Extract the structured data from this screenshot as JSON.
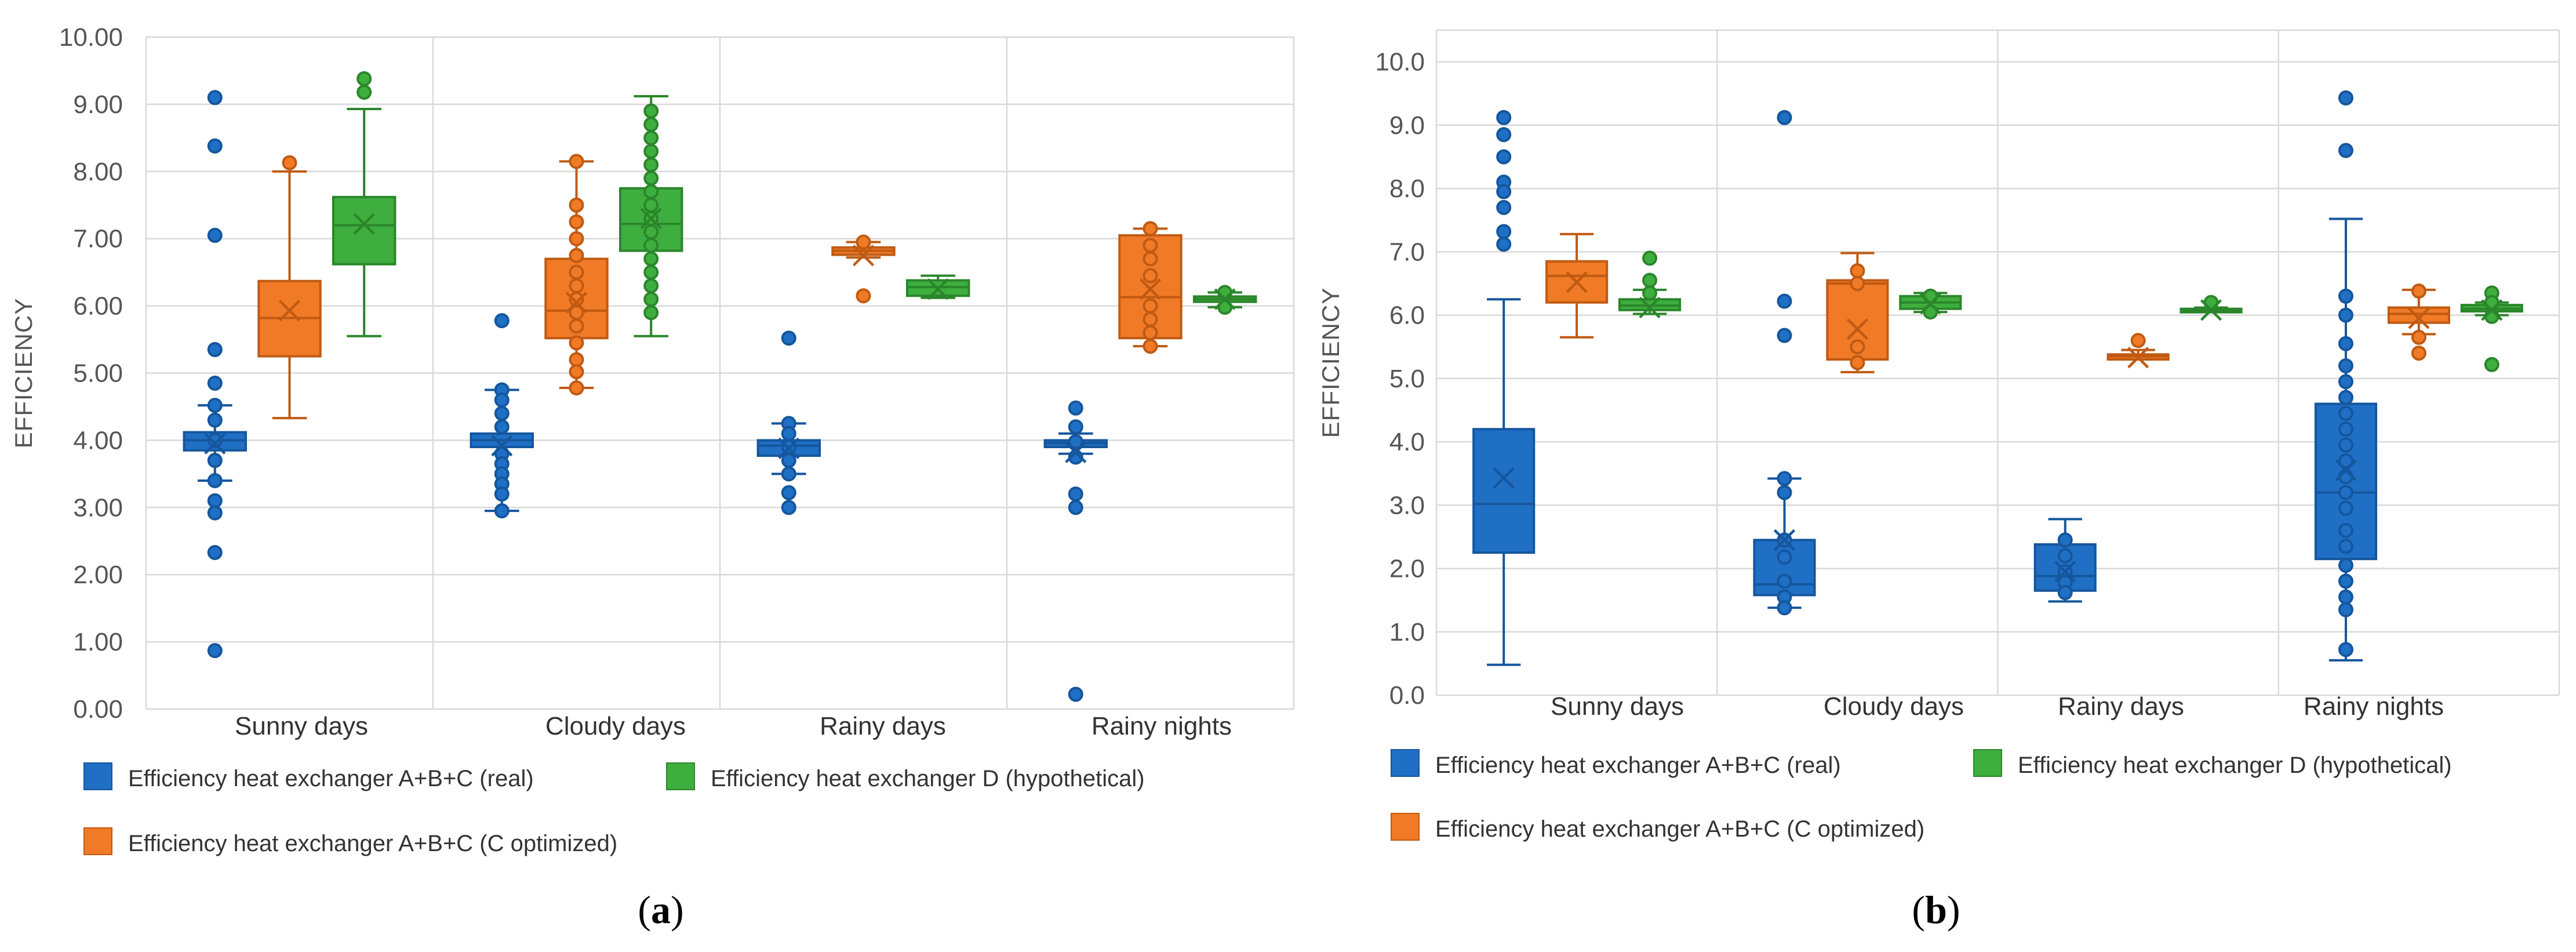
{
  "colors": {
    "series": [
      "#1f6fc5",
      "#f07a26",
      "#3eae3e"
    ],
    "series_dark": [
      "#15569c",
      "#c05a12",
      "#2b862b"
    ],
    "grid": "#d9d9d9",
    "axis_text": "#555555",
    "panel_label": "#000000"
  },
  "legend": {
    "items": [
      "Efficiency heat exchanger A+B+C (real)",
      "Efficiency  heat exchanger D (hypothetical)",
      "Efficiency heat exchanger A+B+C (C optimized)"
    ]
  },
  "chart_data": [
    {
      "type": "box",
      "panel_label": "a",
      "ylabel": "EFFICIENCY",
      "ylim": [
        0,
        10
      ],
      "ytick_values": [
        0,
        1,
        2,
        3,
        4,
        5,
        6,
        7,
        8,
        9,
        10
      ],
      "ytick_labels": [
        "0.00",
        "1.00",
        "2.00",
        "3.00",
        "4.00",
        "5.00",
        "6.00",
        "7.00",
        "8.00",
        "9.00",
        "10.00"
      ],
      "categories": [
        "Sunny days",
        "Cloudy days",
        "Rainy days",
        "Rainy nights"
      ],
      "series": [
        {
          "name": "Efficiency heat exchanger A+B+C (real)",
          "boxes": [
            {
              "min": 3.4,
              "q1": 3.85,
              "median": 4.0,
              "q3": 4.12,
              "max": 4.52,
              "mean": 3.95,
              "points": [
                9.1,
                8.38,
                7.05,
                5.35,
                4.85,
                4.52,
                4.3,
                4.0,
                3.7,
                3.4,
                3.1,
                2.92,
                2.33,
                0.87
              ]
            },
            {
              "min": 2.95,
              "q1": 3.9,
              "median": 4.0,
              "q3": 4.1,
              "max": 4.75,
              "mean": 3.92,
              "points": [
                5.78,
                4.75,
                4.6,
                4.4,
                4.2,
                3.8,
                3.65,
                3.5,
                3.35,
                3.2,
                2.95
              ]
            },
            {
              "min": 3.5,
              "q1": 3.77,
              "median": 3.92,
              "q3": 4.0,
              "max": 4.25,
              "mean": 3.88,
              "points": [
                5.52,
                4.25,
                4.1,
                3.9,
                3.7,
                3.5,
                3.22,
                3.0
              ]
            },
            {
              "min": 3.8,
              "q1": 3.9,
              "median": 3.96,
              "q3": 4.0,
              "max": 4.1,
              "mean": 3.82,
              "points": [
                4.48,
                4.2,
                3.98,
                3.75,
                3.2,
                3.0,
                0.22
              ]
            }
          ]
        },
        {
          "name": "Efficiency heat exchanger A+B+C (C optimized)",
          "boxes": [
            {
              "min": 4.33,
              "q1": 5.25,
              "median": 5.82,
              "q3": 6.37,
              "max": 8.0,
              "mean": 5.93,
              "points": [
                8.13
              ]
            },
            {
              "min": 4.78,
              "q1": 5.52,
              "median": 5.93,
              "q3": 6.7,
              "max": 8.15,
              "mean": 6.05,
              "points": [
                8.15,
                7.5,
                7.25,
                7.0,
                6.75,
                6.5,
                6.3,
                6.1,
                5.9,
                5.7,
                5.45,
                5.2,
                5.02,
                4.78
              ]
            },
            {
              "min": 6.72,
              "q1": 6.76,
              "median": 6.82,
              "q3": 6.87,
              "max": 6.95,
              "mean": 6.75,
              "points": [
                6.95,
                6.15
              ]
            },
            {
              "min": 5.4,
              "q1": 5.52,
              "median": 6.13,
              "q3": 7.05,
              "max": 7.15,
              "mean": 6.25,
              "points": [
                7.15,
                6.9,
                6.7,
                6.45,
                6.0,
                5.8,
                5.6,
                5.4
              ]
            }
          ]
        },
        {
          "name": "Efficiency  heat exchanger D (hypothetical)",
          "boxes": [
            {
              "min": 5.55,
              "q1": 6.62,
              "median": 7.2,
              "q3": 7.62,
              "max": 8.93,
              "mean": 7.22,
              "points": [
                9.38,
                9.18
              ]
            },
            {
              "min": 5.55,
              "q1": 6.82,
              "median": 7.22,
              "q3": 7.75,
              "max": 9.12,
              "mean": 7.3,
              "points": [
                8.9,
                8.7,
                8.5,
                8.3,
                8.1,
                7.9,
                7.7,
                7.5,
                7.3,
                7.1,
                6.9,
                6.7,
                6.5,
                6.3,
                6.1,
                5.9
              ]
            },
            {
              "min": 6.12,
              "q1": 6.15,
              "median": 6.28,
              "q3": 6.38,
              "max": 6.45,
              "mean": 6.25,
              "points": []
            },
            {
              "min": 5.98,
              "q1": 6.06,
              "median": 6.1,
              "q3": 6.14,
              "max": 6.2,
              "mean": 6.1,
              "points": [
                6.2,
                5.98
              ]
            }
          ]
        }
      ]
    },
    {
      "type": "box",
      "panel_label": "b",
      "ylabel": "EFFICIENCY",
      "ylim": [
        0,
        10.5
      ],
      "ytick_values": [
        0,
        1,
        2,
        3,
        4,
        5,
        6,
        7,
        8,
        9,
        10
      ],
      "ytick_labels": [
        "0.0",
        "1.0",
        "2.0",
        "3.0",
        "4.0",
        "5.0",
        "6.0",
        "7.0",
        "8.0",
        "9.0",
        "10.0"
      ],
      "categories": [
        "Sunny days",
        "Cloudy days",
        "Rainy days",
        "Rainy nights"
      ],
      "series": [
        {
          "name": "Efficiency heat exchanger A+B+C (real)",
          "boxes": [
            {
              "min": 0.48,
              "q1": 2.25,
              "median": 3.02,
              "q3": 4.2,
              "max": 6.25,
              "mean": 3.43,
              "points": [
                9.12,
                8.85,
                8.5,
                8.1,
                7.95,
                7.7,
                7.32,
                7.12
              ]
            },
            {
              "min": 1.38,
              "q1": 1.58,
              "median": 1.75,
              "q3": 2.45,
              "max": 3.42,
              "mean": 2.45,
              "points": [
                9.12,
                6.22,
                5.68,
                3.42,
                3.2,
                2.45,
                2.18,
                1.8,
                1.55,
                1.38
              ]
            },
            {
              "min": 1.48,
              "q1": 1.65,
              "median": 1.88,
              "q3": 2.38,
              "max": 2.78,
              "mean": 1.95,
              "points": [
                2.45,
                2.2,
                1.95,
                1.78,
                1.62
              ]
            },
            {
              "min": 0.55,
              "q1": 2.15,
              "median": 3.2,
              "q3": 4.6,
              "max": 7.52,
              "mean": 3.55,
              "points": [
                9.43,
                8.6,
                6.3,
                6.0,
                5.55,
                5.2,
                4.95,
                4.7,
                4.45,
                4.2,
                3.95,
                3.7,
                3.45,
                3.2,
                2.95,
                2.6,
                2.35,
                2.05,
                1.8,
                1.55,
                1.35,
                0.72
              ]
            }
          ]
        },
        {
          "name": "Efficiency heat exchanger A+B+C (C optimized)",
          "boxes": [
            {
              "min": 5.65,
              "q1": 6.2,
              "median": 6.62,
              "q3": 6.85,
              "max": 7.28,
              "mean": 6.52,
              "points": []
            },
            {
              "min": 5.1,
              "q1": 5.3,
              "median": 6.5,
              "q3": 6.55,
              "max": 6.98,
              "mean": 5.78,
              "points": [
                6.7,
                6.5,
                5.5,
                5.25
              ]
            },
            {
              "min": 5.3,
              "q1": 5.3,
              "median": 5.35,
              "q3": 5.38,
              "max": 5.45,
              "mean": 5.33,
              "points": [
                5.6
              ]
            },
            {
              "min": 5.7,
              "q1": 5.88,
              "median": 6.02,
              "q3": 6.12,
              "max": 6.4,
              "mean": 5.95,
              "points": [
                6.38,
                5.65,
                5.4
              ]
            }
          ]
        },
        {
          "name": "Efficiency  heat exchanger D (hypothetical)",
          "boxes": [
            {
              "min": 6.02,
              "q1": 6.08,
              "median": 6.15,
              "q3": 6.25,
              "max": 6.4,
              "mean": 6.12,
              "points": [
                6.9,
                6.55,
                6.35
              ]
            },
            {
              "min": 6.05,
              "q1": 6.1,
              "median": 6.2,
              "q3": 6.3,
              "max": 6.35,
              "mean": 6.18,
              "points": [
                6.3,
                6.05
              ]
            },
            {
              "min": 6.05,
              "q1": 6.06,
              "median": 6.08,
              "q3": 6.1,
              "max": 6.12,
              "mean": 6.08,
              "points": [
                6.2
              ]
            },
            {
              "min": 6.0,
              "q1": 6.06,
              "median": 6.1,
              "q3": 6.16,
              "max": 6.2,
              "mean": 6.08,
              "points": [
                6.35,
                6.2,
                5.98,
                5.22
              ]
            }
          ]
        }
      ]
    }
  ]
}
